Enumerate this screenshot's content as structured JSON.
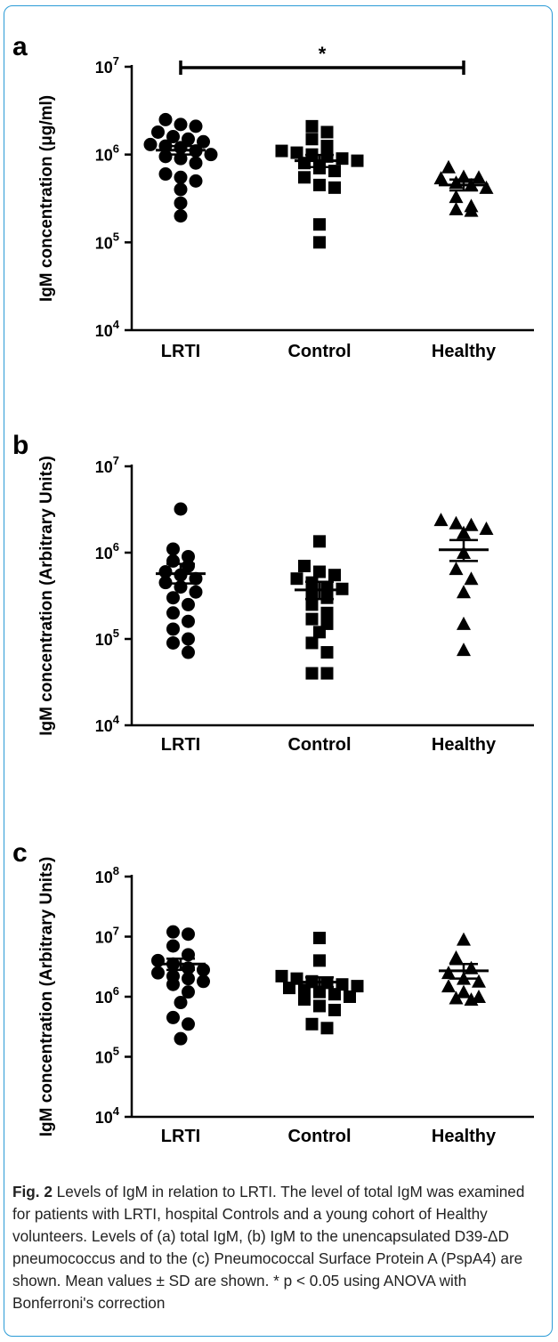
{
  "caption": {
    "label": "Fig. 2",
    "text": "Levels of IgM in relation to LRTI. The level of total IgM was examined for patients with LRTI, hospital Controls and a young cohort of Healthy volunteers. Levels of (a) total IgM, (b) IgM to the unencapsulated D39-ΔD pneumococcus and to the (c) Pneumococcal Surface Protein A (PspA4) are shown. Mean values ± SD are shown. * p < 0.05 using ANOVA with Bonferroni's correction"
  },
  "colors": {
    "marker": "#000000",
    "frame": "#2b9bd6"
  },
  "chart_data": [
    {
      "panel_label": "a",
      "type": "scatter",
      "ylabel": "IgM concentration (μg/ml)",
      "yscale": "log",
      "ylim": [
        10000,
        10000000
      ],
      "y_ticks": [
        {
          "base": "10",
          "exp": "4"
        },
        {
          "base": "10",
          "exp": "5"
        },
        {
          "base": "10",
          "exp": "6"
        },
        {
          "base": "10",
          "exp": "7"
        }
      ],
      "categories": [
        "LRTI",
        "Control",
        "Healthy"
      ],
      "markers": [
        "circle",
        "square",
        "triangle"
      ],
      "groups": [
        {
          "values": [
            2500000,
            2200000,
            2100000,
            1800000,
            1600000,
            1500000,
            1400000,
            1300000,
            1250000,
            1200000,
            1100000,
            1000000,
            950000,
            900000,
            800000,
            600000,
            550000,
            500000,
            400000,
            280000,
            200000
          ],
          "mean": 1120000,
          "err_low": 1000000,
          "err_high": 1250000
        },
        {
          "values": [
            2100000,
            1800000,
            1500000,
            1250000,
            1100000,
            1050000,
            1000000,
            950000,
            900000,
            850000,
            800000,
            700000,
            650000,
            550000,
            450000,
            420000,
            160000,
            100000
          ],
          "mean": 850000,
          "err_low": 720000,
          "err_high": 990000
        },
        {
          "values": [
            720000,
            560000,
            550000,
            540000,
            480000,
            450000,
            420000,
            330000,
            260000,
            240000,
            230000
          ],
          "mean": 450000,
          "err_low": 390000,
          "err_high": 520000
        }
      ],
      "significance": {
        "from": "LRTI",
        "to": "Healthy",
        "label": "*"
      }
    },
    {
      "panel_label": "b",
      "type": "scatter",
      "ylabel": "IgM concentration (Arbitrary  Units)",
      "yscale": "log",
      "ylim": [
        10000,
        10000000
      ],
      "y_ticks": [
        {
          "base": "10",
          "exp": "4"
        },
        {
          "base": "10",
          "exp": "5"
        },
        {
          "base": "10",
          "exp": "6"
        },
        {
          "base": "10",
          "exp": "7"
        }
      ],
      "categories": [
        "LRTI",
        "Control",
        "Healthy"
      ],
      "markers": [
        "circle",
        "square",
        "triangle"
      ],
      "groups": [
        {
          "values": [
            3200000,
            1100000,
            900000,
            800000,
            700000,
            600000,
            550000,
            500000,
            450000,
            400000,
            350000,
            300000,
            250000,
            200000,
            160000,
            130000,
            100000,
            90000,
            70000
          ],
          "mean": 570000,
          "err_low": 440000,
          "err_high": 740000
        },
        {
          "values": [
            1350000,
            700000,
            600000,
            550000,
            500000,
            450000,
            400000,
            380000,
            350000,
            300000,
            250000,
            200000,
            170000,
            150000,
            120000,
            90000,
            70000,
            40000,
            40000
          ],
          "mean": 370000,
          "err_low": 290000,
          "err_high": 460000
        },
        {
          "values": [
            2400000,
            2200000,
            2100000,
            1900000,
            1700000,
            1000000,
            650000,
            500000,
            350000,
            150000,
            75000
          ],
          "mean": 1080000,
          "err_low": 800000,
          "err_high": 1400000
        }
      ]
    },
    {
      "panel_label": "c",
      "type": "scatter",
      "ylabel": "IgM concentration (Arbitrary Units)",
      "yscale": "log",
      "ylim": [
        10000,
        100000000
      ],
      "y_ticks": [
        {
          "base": "10",
          "exp": "4"
        },
        {
          "base": "10",
          "exp": "5"
        },
        {
          "base": "10",
          "exp": "6"
        },
        {
          "base": "10",
          "exp": "7"
        },
        {
          "base": "10",
          "exp": "8"
        }
      ],
      "categories": [
        "LRTI",
        "Control",
        "Healthy"
      ],
      "markers": [
        "circle",
        "square",
        "triangle"
      ],
      "groups": [
        {
          "values": [
            12000000,
            11000000,
            7000000,
            5000000,
            4000000,
            3500000,
            3000000,
            2800000,
            2500000,
            2200000,
            2000000,
            1800000,
            1600000,
            1200000,
            800000,
            450000,
            350000,
            200000
          ],
          "mean": 3500000,
          "err_low": 2800000,
          "err_high": 4300000
        },
        {
          "values": [
            9500000,
            4000000,
            2200000,
            2000000,
            1800000,
            1700000,
            1600000,
            1500000,
            1400000,
            1300000,
            1200000,
            1100000,
            1000000,
            900000,
            700000,
            600000,
            350000,
            300000
          ],
          "mean": 1750000,
          "err_low": 1450000,
          "err_high": 2100000
        },
        {
          "values": [
            9000000,
            4500000,
            3000000,
            2500000,
            2000000,
            1800000,
            1500000,
            1200000,
            1000000,
            950000,
            900000
          ],
          "mean": 2700000,
          "err_low": 2000000,
          "err_high": 3500000
        }
      ]
    }
  ]
}
